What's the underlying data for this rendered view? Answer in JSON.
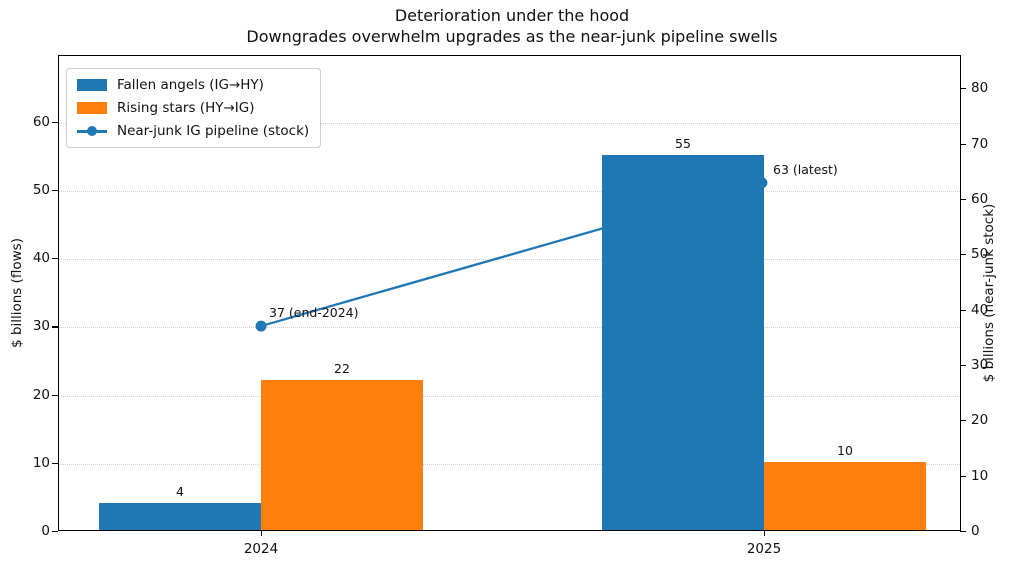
{
  "title": {
    "line1": "Deterioration under the hood",
    "line2": "Downgrades overwhelm upgrades as the near-junk pipeline swells"
  },
  "legend": {
    "items": [
      {
        "key": "fallen_angels",
        "label": "Fallen angels (IG→HY)",
        "swatch": "bar",
        "color": "#1f77b4"
      },
      {
        "key": "rising_stars",
        "label": "Rising stars (HY→IG)",
        "swatch": "bar",
        "color": "#ff7f0e"
      },
      {
        "key": "pipeline",
        "label": "Near-junk IG pipeline (stock)",
        "swatch": "line-marker",
        "color": "#1f77b4"
      }
    ]
  },
  "chart_data": {
    "type": "bar",
    "title": "Deterioration under the hood",
    "subtitle": "Downgrades overwhelm upgrades as the near-junk pipeline swells",
    "categories": [
      "2024",
      "2025"
    ],
    "series": [
      {
        "key": "fallen_angels",
        "name": "Fallen angels (IG→HY)",
        "type": "bar",
        "axis": "left",
        "color": "#1f77b4",
        "values": [
          4,
          55
        ],
        "value_labels": [
          "4",
          "55"
        ]
      },
      {
        "key": "rising_stars",
        "name": "Rising stars (HY→IG)",
        "type": "bar",
        "axis": "left",
        "color": "#ff7f0e",
        "values": [
          22,
          10
        ],
        "value_labels": [
          "22",
          "10"
        ]
      },
      {
        "key": "pipeline",
        "name": "Near-junk IG pipeline (stock)",
        "type": "line",
        "axis": "right",
        "color": "#1f77b4",
        "values": [
          37,
          63
        ],
        "point_labels": [
          "37 (end-2024)",
          "63 (latest)"
        ]
      }
    ],
    "ylabel_left": "$ billions (flows)",
    "ylabel_right": "$ billions (near-junk stock)",
    "yticks_left": [
      0,
      10,
      20,
      30,
      40,
      50,
      60
    ],
    "yticks_right": [
      0,
      10,
      20,
      30,
      40,
      50,
      60,
      70,
      80
    ],
    "ylim_left": [
      0,
      69.8
    ],
    "ylim_right": [
      0,
      86
    ],
    "grid": "horizontal dotted, left-axis ticks",
    "legend_position": "upper left"
  },
  "colors": {
    "blue": "#1f77b4",
    "orange": "#ff7f0e",
    "grid": "#cfcfcf",
    "text": "#111111",
    "spine": "#000000",
    "legend_border": "#cccccc",
    "background": "#ffffff"
  }
}
